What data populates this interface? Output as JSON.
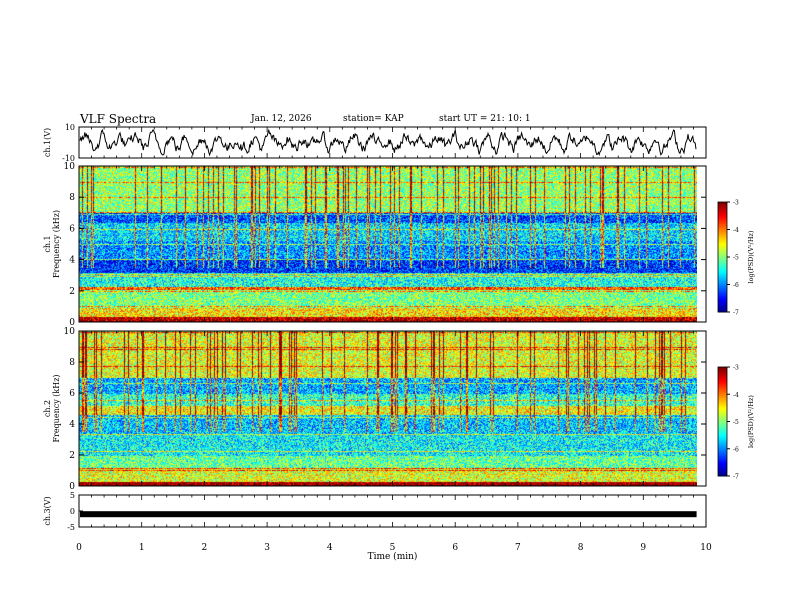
{
  "header": {
    "title": "VLF Spectra",
    "date": "Jan. 12, 2026",
    "station": "station= KAP",
    "start": "start  UT  =   21: 10: 1"
  },
  "chart_data": [
    {
      "type": "line",
      "name": "ch1-waveform",
      "ylabel": "ch.1(V)",
      "ylim": [
        -10,
        10
      ],
      "yticks": [
        "10",
        "-10"
      ],
      "xlim": [
        0,
        10
      ],
      "note": "dense noisy waveform, mostly between -6 and +6 V"
    },
    {
      "type": "heatmap",
      "name": "ch1-spectrogram",
      "ylabel": "ch.1",
      "ylabel2": "Frequency (kHz)",
      "ylim": [
        0,
        10
      ],
      "yticks": [
        "10",
        "8",
        "6",
        "4",
        "2",
        "0"
      ],
      "xlim": [
        0,
        9.8
      ],
      "colorbar": {
        "label": "log(PSD)(V²/Hz)",
        "range": [
          -7,
          -3
        ],
        "ticks": [
          "-3",
          "-4",
          "-5",
          "-6",
          "-7"
        ]
      },
      "bands": [
        {
          "f": [
            0,
            0.35
          ],
          "level": -3.2
        },
        {
          "f": [
            0.35,
            0.9
          ],
          "level": -4.4
        },
        {
          "f": [
            0.9,
            2.1
          ],
          "level": -5.0
        },
        {
          "f": [
            2.1,
            2.3
          ],
          "level": -3.8
        },
        {
          "f": [
            2.3,
            3.2
          ],
          "level": -5.4
        },
        {
          "f": [
            3.2,
            4.0
          ],
          "level": -6.3
        },
        {
          "f": [
            4.0,
            5.2
          ],
          "level": -5.9
        },
        {
          "f": [
            5.2,
            6.4
          ],
          "level": -5.6
        },
        {
          "f": [
            6.4,
            7.0
          ],
          "level": -6.2
        },
        {
          "f": [
            7.0,
            10.0
          ],
          "level": -4.9
        }
      ]
    },
    {
      "type": "heatmap",
      "name": "ch2-spectrogram",
      "ylabel": "ch.2",
      "ylabel2": "Frequency (kHz)",
      "ylim": [
        0,
        10
      ],
      "yticks": [
        "10",
        "8",
        "6",
        "4",
        "2",
        "0"
      ],
      "xlim": [
        0,
        9.8
      ],
      "colorbar": {
        "label": "log(PSD)(V²/Hz)",
        "range": [
          -7,
          -3
        ],
        "ticks": [
          "-3",
          "-4",
          "-5",
          "-6",
          "-7"
        ]
      },
      "bands": [
        {
          "f": [
            0,
            0.3
          ],
          "level": -3.0
        },
        {
          "f": [
            0.3,
            1.2
          ],
          "level": -4.6
        },
        {
          "f": [
            1.2,
            2.0
          ],
          "level": -5.1
        },
        {
          "f": [
            2.0,
            3.4
          ],
          "level": -5.5
        },
        {
          "f": [
            3.4,
            4.6
          ],
          "level": -5.7
        },
        {
          "f": [
            4.6,
            6.0
          ],
          "level": -5.3
        },
        {
          "f": [
            6.0,
            7.0
          ],
          "level": -5.8
        },
        {
          "f": [
            7.0,
            10.0
          ],
          "level": -4.6
        }
      ]
    },
    {
      "type": "line",
      "name": "ch3-signal",
      "ylabel": "ch.3(V)",
      "ylim": [
        -5,
        5
      ],
      "yticks": [
        "5",
        "0",
        "-5"
      ],
      "xlim": [
        0,
        10
      ],
      "level": -1.0
    }
  ],
  "xaxis": {
    "label": "Time (min)",
    "ticks": [
      "0",
      "1",
      "2",
      "3",
      "4",
      "5",
      "6",
      "7",
      "8",
      "9",
      "10"
    ]
  },
  "colors": {
    "frame": "#000000",
    "waveform": "#000000"
  }
}
